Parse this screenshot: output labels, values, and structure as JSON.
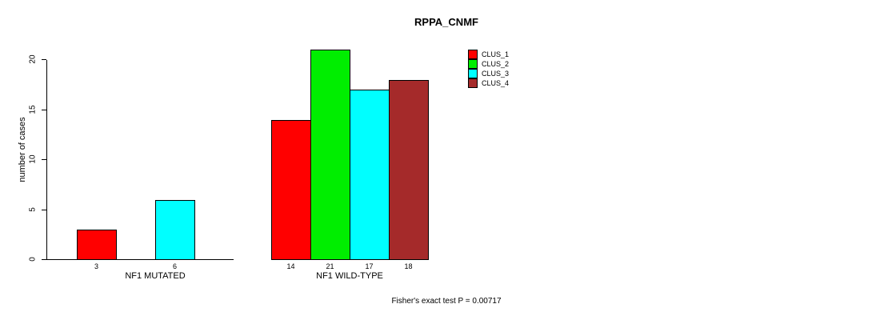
{
  "chart_data": {
    "type": "bar",
    "title": "RPPA_CNMF",
    "ylabel": "number of cases",
    "ylim": [
      0,
      20
    ],
    "yticks": [
      0,
      5,
      10,
      15,
      20
    ],
    "grid": false,
    "legend_position": "top-right",
    "annotation": "Fisher's exact test P = 0.00717",
    "legend": [
      {
        "label": "CLUS_1",
        "color": "#ff0000"
      },
      {
        "label": "CLUS_2",
        "color": "#00ee00"
      },
      {
        "label": "CLUS_3",
        "color": "#00ffff"
      },
      {
        "label": "CLUS_4",
        "color": "#a52a2a"
      }
    ],
    "groups": [
      {
        "label": "NF1 MUTATED",
        "bars": [
          {
            "cluster": "CLUS_1",
            "value": 3,
            "color": "#ff0000"
          },
          {
            "cluster": "CLUS_2",
            "value": 0,
            "color": "#00ee00"
          },
          {
            "cluster": "CLUS_3",
            "value": 6,
            "color": "#00ffff"
          },
          {
            "cluster": "CLUS_4",
            "value": 0,
            "color": "#a52a2a"
          }
        ]
      },
      {
        "label": "NF1 WILD-TYPE",
        "bars": [
          {
            "cluster": "CLUS_1",
            "value": 14,
            "color": "#ff0000"
          },
          {
            "cluster": "CLUS_2",
            "value": 21,
            "color": "#00ee00"
          },
          {
            "cluster": "CLUS_3",
            "value": 17,
            "color": "#00ffff"
          },
          {
            "cluster": "CLUS_4",
            "value": 18,
            "color": "#a52a2a"
          }
        ]
      }
    ]
  }
}
